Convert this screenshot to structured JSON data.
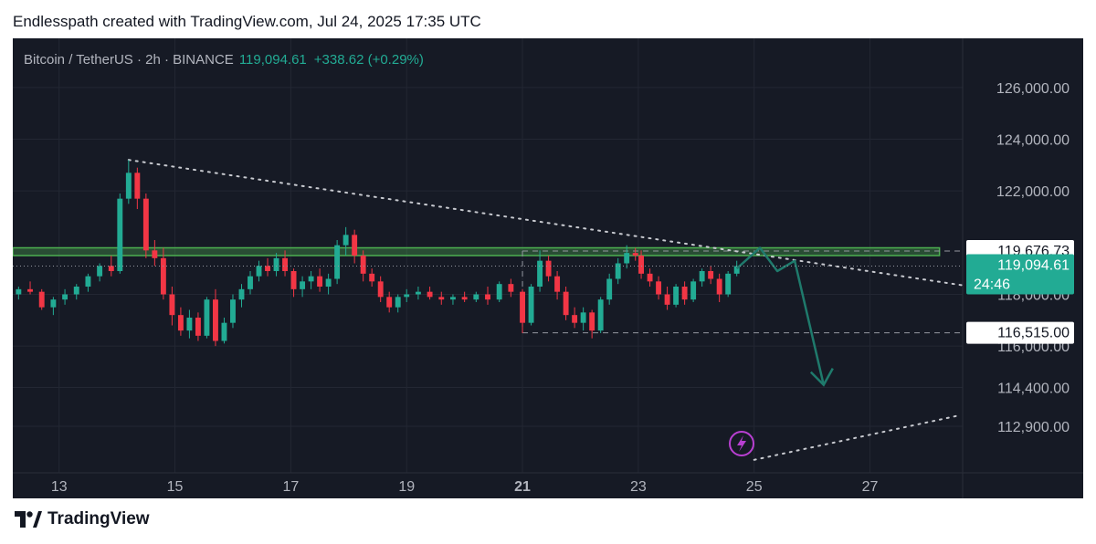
{
  "header": {
    "attribution": "Endlesspath created with TradingView.com, Jul 24, 2025 17:35 UTC"
  },
  "legend": {
    "symbol": "Bitcoin / TetherUS · 2h · BINANCE",
    "price": "119,094.61",
    "change": "+338.62 (+0.29%)"
  },
  "footer": {
    "brand": "TradingView"
  },
  "colors": {
    "bg": "#161a25",
    "up": "#22ab94",
    "down": "#f23645",
    "text": "#b2b5be",
    "zone": "#4caf50",
    "arrow": "#1f7a6c",
    "lightning": "#b83fd1"
  },
  "chart_data": {
    "type": "candlestick",
    "xlabel": "",
    "ylabel": "",
    "x_ticks": [
      "13",
      "15",
      "17",
      "19",
      "21",
      "23",
      "25",
      "27"
    ],
    "x_tick_days": [
      13,
      15,
      17,
      19,
      21,
      23,
      25,
      27
    ],
    "x_range_days": [
      12.2,
      28.6
    ],
    "y_ticks": [
      "126,000.00",
      "124,000.00",
      "122,000.00",
      "118,000.00",
      "116,000.00",
      "114,400.00",
      "112,900.00"
    ],
    "y_tick_values": [
      126000,
      124000,
      122000,
      118000,
      116000,
      114400,
      112900
    ],
    "y_range": [
      111100,
      127900
    ],
    "grid": true,
    "price_labels": [
      {
        "value": 119676.73,
        "label": "119,676.73",
        "style": "white"
      },
      {
        "value": 119094.61,
        "label": "119,094.61",
        "sub": "24:46",
        "style": "green"
      },
      {
        "value": 116515.0,
        "label": "116,515.00",
        "style": "white"
      }
    ],
    "resistance_zone": {
      "low": 119500,
      "high": 119800,
      "day_start": 12.2,
      "day_end": 28.2
    },
    "range_box": {
      "high": 119676.73,
      "low": 116515.0,
      "day_start": 21.0,
      "day_end": 28.6
    },
    "trendlines": [
      {
        "style": "dotted",
        "points": [
          [
            14.2,
            123200
          ],
          [
            28.6,
            118350
          ]
        ]
      },
      {
        "style": "dotted",
        "points": [
          [
            25.0,
            111600
          ],
          [
            28.5,
            113300
          ]
        ]
      }
    ],
    "projection_arrow": [
      [
        24.7,
        119000
      ],
      [
        25.1,
        119800
      ],
      [
        25.4,
        118900
      ],
      [
        25.7,
        119300
      ],
      [
        26.2,
        114500
      ]
    ],
    "candles_ohlc_key": [
      "day",
      "open",
      "high",
      "low",
      "close"
    ],
    "candles": [
      [
        12.3,
        118000,
        118300,
        117800,
        118200
      ],
      [
        12.5,
        118200,
        118500,
        118000,
        118100
      ],
      [
        12.7,
        118100,
        118200,
        117400,
        117500
      ],
      [
        12.9,
        117500,
        117900,
        117200,
        117800
      ],
      [
        13.1,
        117800,
        118200,
        117600,
        118000
      ],
      [
        13.3,
        118000,
        118400,
        117800,
        118300
      ],
      [
        13.5,
        118300,
        118800,
        118100,
        118700
      ],
      [
        13.7,
        118700,
        119200,
        118500,
        119100
      ],
      [
        13.9,
        119100,
        119500,
        118700,
        118900
      ],
      [
        14.05,
        118900,
        121900,
        118800,
        121700
      ],
      [
        14.2,
        121700,
        123200,
        121500,
        122700
      ],
      [
        14.35,
        122700,
        122900,
        121300,
        121700
      ],
      [
        14.5,
        121700,
        121900,
        119400,
        119700
      ],
      [
        14.65,
        119700,
        120100,
        119100,
        119400
      ],
      [
        14.8,
        119400,
        119800,
        117800,
        118000
      ],
      [
        14.95,
        118000,
        118300,
        116800,
        117200
      ],
      [
        15.1,
        117200,
        117500,
        116400,
        116600
      ],
      [
        15.25,
        116600,
        117400,
        116300,
        117100
      ],
      [
        15.4,
        117100,
        117300,
        116200,
        116400
      ],
      [
        15.55,
        116400,
        117900,
        116300,
        117800
      ],
      [
        15.7,
        117800,
        118200,
        116000,
        116200
      ],
      [
        15.85,
        116200,
        117100,
        116100,
        116900
      ],
      [
        16.0,
        116900,
        118000,
        116700,
        117800
      ],
      [
        16.15,
        117800,
        118400,
        117500,
        118200
      ],
      [
        16.3,
        118200,
        118900,
        118000,
        118700
      ],
      [
        16.45,
        118700,
        119300,
        118500,
        119100
      ],
      [
        16.6,
        119100,
        119400,
        118700,
        118900
      ],
      [
        16.75,
        118900,
        119600,
        118700,
        119400
      ],
      [
        16.9,
        119400,
        119700,
        118700,
        118900
      ],
      [
        17.05,
        118900,
        119000,
        117900,
        118200
      ],
      [
        17.2,
        118200,
        118700,
        117900,
        118500
      ],
      [
        17.35,
        118500,
        118900,
        118200,
        118700
      ],
      [
        17.5,
        118700,
        119000,
        118100,
        118300
      ],
      [
        17.65,
        118300,
        118800,
        118000,
        118600
      ],
      [
        17.8,
        118600,
        120100,
        118400,
        119900
      ],
      [
        17.95,
        119900,
        120600,
        119500,
        120300
      ],
      [
        18.1,
        120300,
        120500,
        119200,
        119500
      ],
      [
        18.25,
        119500,
        119700,
        118500,
        118800
      ],
      [
        18.4,
        118800,
        119000,
        118300,
        118500
      ],
      [
        18.55,
        118500,
        118700,
        117700,
        117900
      ],
      [
        18.7,
        117900,
        118100,
        117300,
        117500
      ],
      [
        18.85,
        117500,
        118000,
        117300,
        117900
      ],
      [
        19.0,
        117900,
        118200,
        117700,
        118000
      ],
      [
        19.2,
        118000,
        118300,
        117800,
        118100
      ],
      [
        19.4,
        118100,
        118300,
        117800,
        117900
      ],
      [
        19.6,
        117900,
        118100,
        117600,
        117800
      ],
      [
        19.8,
        117800,
        118000,
        117600,
        117900
      ],
      [
        20.0,
        117900,
        118100,
        117700,
        117800
      ],
      [
        20.2,
        117800,
        118100,
        117700,
        118000
      ],
      [
        20.4,
        118000,
        118300,
        117600,
        117800
      ],
      [
        20.6,
        117800,
        118500,
        117700,
        118400
      ],
      [
        20.8,
        118400,
        118600,
        117900,
        118100
      ],
      [
        21.0,
        118100,
        118200,
        116500,
        116900
      ],
      [
        21.15,
        116900,
        118400,
        116800,
        118300
      ],
      [
        21.3,
        118300,
        119700,
        118100,
        119300
      ],
      [
        21.45,
        119300,
        119500,
        118500,
        118700
      ],
      [
        21.6,
        118700,
        118900,
        117800,
        118100
      ],
      [
        21.75,
        118100,
        118300,
        117000,
        117200
      ],
      [
        21.9,
        117200,
        117500,
        116700,
        116900
      ],
      [
        22.05,
        116900,
        117500,
        116600,
        117300
      ],
      [
        22.2,
        117300,
        117400,
        116300,
        116600
      ],
      [
        22.35,
        116600,
        117900,
        116500,
        117800
      ],
      [
        22.5,
        117800,
        118800,
        117600,
        118600
      ],
      [
        22.65,
        118600,
        119400,
        118400,
        119200
      ],
      [
        22.8,
        119200,
        119900,
        119000,
        119600
      ],
      [
        22.95,
        119600,
        119800,
        119300,
        119500
      ],
      [
        23.05,
        119500,
        119700,
        118600,
        118800
      ],
      [
        23.2,
        118800,
        119000,
        118300,
        118500
      ],
      [
        23.35,
        118500,
        118700,
        117800,
        118000
      ],
      [
        23.5,
        118000,
        118300,
        117400,
        117600
      ],
      [
        23.65,
        117600,
        118400,
        117500,
        118300
      ],
      [
        23.8,
        118300,
        118500,
        117600,
        117800
      ],
      [
        23.95,
        117800,
        118600,
        117700,
        118500
      ],
      [
        24.1,
        118500,
        119000,
        118300,
        118900
      ],
      [
        24.25,
        118900,
        119100,
        118400,
        118600
      ],
      [
        24.4,
        118600,
        118800,
        117700,
        118000
      ],
      [
        24.55,
        118000,
        118900,
        117900,
        118800
      ],
      [
        24.7,
        118800,
        119300,
        118700,
        119094.61
      ]
    ]
  }
}
